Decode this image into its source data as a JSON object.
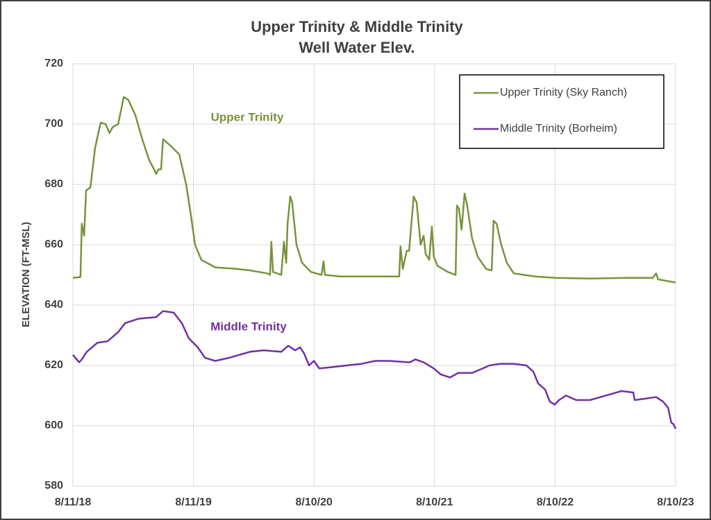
{
  "chart_data": {
    "type": "line",
    "title": "Upper Trinity & Middle Trinity",
    "subtitle": "Well Water Elev.",
    "y_label": "ELEVATION (FT-MSL)",
    "annotations": [
      "Upper Trinity",
      "Middle Trinity"
    ],
    "xlim": [
      "2018-08-11",
      "2023-08-10"
    ],
    "xticks": [
      {
        "value": "2018-08-11",
        "label": "8/11/18"
      },
      {
        "value": "2019-08-11",
        "label": "8/11/19"
      },
      {
        "value": "2020-08-10",
        "label": "8/10/20"
      },
      {
        "value": "2021-08-10",
        "label": "8/10/21"
      },
      {
        "value": "2022-08-10",
        "label": "8/10/22"
      },
      {
        "value": "2023-08-10",
        "label": "8/10/23"
      }
    ],
    "ylim": [
      580,
      720
    ],
    "yticks": [
      580,
      600,
      620,
      640,
      660,
      680,
      700,
      720
    ],
    "grid": true,
    "legend": "top-right",
    "series": [
      {
        "name": "Upper Trinity (Sky Ranch)",
        "color": "#77933c",
        "x": [
          "2018-08-11",
          "2018-09-03",
          "2018-09-07",
          "2018-09-14",
          "2018-09-20",
          "2018-10-03",
          "2018-10-17",
          "2018-11-03",
          "2018-11-18",
          "2018-11-30",
          "2018-12-09",
          "2018-12-26",
          "2019-01-12",
          "2019-01-26",
          "2019-02-16",
          "2019-03-09",
          "2019-03-30",
          "2019-04-14",
          "2019-04-20",
          "2019-04-27",
          "2019-05-05",
          "2019-05-11",
          "2019-06-01",
          "2019-06-29",
          "2019-07-20",
          "2019-08-03",
          "2019-08-16",
          "2019-09-04",
          "2019-10-16",
          "2019-12-18",
          "2020-01-29",
          "2020-03-22",
          "2020-03-30",
          "2020-04-03",
          "2020-04-08",
          "2020-05-03",
          "2020-05-11",
          "2020-05-18",
          "2020-05-22",
          "2020-05-30",
          "2020-06-05",
          "2020-06-18",
          "2020-07-05",
          "2020-08-01",
          "2020-09-02",
          "2020-09-08",
          "2020-09-12",
          "2020-10-29",
          "2021-01-21",
          "2021-03-25",
          "2021-04-25",
          "2021-04-29",
          "2021-05-06",
          "2021-05-18",
          "2021-05-25",
          "2021-06-08",
          "2021-06-17",
          "2021-06-29",
          "2021-07-08",
          "2021-07-14",
          "2021-07-25",
          "2021-08-02",
          "2021-08-08",
          "2021-08-19",
          "2021-09-19",
          "2021-10-13",
          "2021-10-17",
          "2021-10-23",
          "2021-10-31",
          "2021-11-09",
          "2021-11-17",
          "2021-12-02",
          "2021-12-19",
          "2022-01-13",
          "2022-01-30",
          "2022-02-05",
          "2022-02-14",
          "2022-02-28",
          "2022-03-17",
          "2022-04-07",
          "2022-06-09",
          "2022-08-11",
          "2022-11-24",
          "2023-03-10",
          "2023-06-02",
          "2023-06-12",
          "2023-06-18",
          "2023-08-10"
        ],
        "values": [
          649,
          649.3,
          667,
          663,
          678,
          679,
          692,
          700.5,
          700,
          697,
          699,
          700,
          709,
          708,
          703,
          695,
          688,
          685,
          683.5,
          685,
          685,
          695,
          693,
          690,
          680,
          670,
          660,
          655,
          652.5,
          652,
          651.5,
          650.5,
          650,
          661,
          651,
          650,
          661,
          654,
          667,
          676,
          674,
          660,
          654,
          651,
          650,
          654.5,
          650,
          649.5,
          649.5,
          649.5,
          649.5,
          659.5,
          652,
          658,
          658,
          676,
          674,
          660,
          663,
          657,
          655,
          666,
          656,
          653,
          651,
          650,
          673,
          672,
          665,
          677,
          673,
          662,
          656,
          652,
          651.5,
          668,
          667,
          660,
          654,
          650.5,
          649.5,
          649,
          648.8,
          649,
          649,
          650.5,
          648.5,
          647.5
        ]
      },
      {
        "name": "Middle Trinity (Borheim)",
        "color": "#7030a0",
        "x": [
          "2018-08-11",
          "2018-08-30",
          "2018-09-07",
          "2018-09-22",
          "2018-10-24",
          "2018-11-24",
          "2018-12-26",
          "2019-01-16",
          "2019-02-27",
          "2019-04-20",
          "2019-05-11",
          "2019-06-12",
          "2019-07-07",
          "2019-07-28",
          "2019-08-24",
          "2019-09-15",
          "2019-10-16",
          "2019-11-27",
          "2020-01-29",
          "2020-03-11",
          "2020-05-03",
          "2020-05-24",
          "2020-06-14",
          "2020-06-29",
          "2020-07-11",
          "2020-07-26",
          "2020-08-10",
          "2020-08-26",
          "2020-10-08",
          "2020-11-19",
          "2020-12-31",
          "2021-02-11",
          "2021-03-25",
          "2021-05-27",
          "2021-06-13",
          "2021-07-08",
          "2021-08-08",
          "2021-08-29",
          "2021-09-26",
          "2021-10-21",
          "2021-12-02",
          "2022-01-03",
          "2022-01-24",
          "2022-02-24",
          "2022-04-07",
          "2022-05-15",
          "2022-06-05",
          "2022-06-20",
          "2022-07-11",
          "2022-07-25",
          "2022-08-09",
          "2022-08-22",
          "2022-09-12",
          "2022-10-13",
          "2022-11-24",
          "2022-12-26",
          "2023-01-27",
          "2023-02-27",
          "2023-04-04",
          "2023-04-08",
          "2023-05-12",
          "2023-06-12",
          "2023-07-03",
          "2023-07-18",
          "2023-07-28",
          "2023-08-04",
          "2023-08-10"
        ],
        "values": [
          623.5,
          621,
          622,
          624.5,
          627.5,
          628,
          631,
          634,
          635.5,
          636,
          638,
          637.5,
          634,
          629,
          626,
          622.5,
          621.5,
          622.5,
          624.5,
          625,
          624.5,
          626.5,
          625,
          626,
          624,
          620,
          621.5,
          619,
          619.5,
          620,
          620.5,
          621.5,
          621.5,
          621,
          622,
          621,
          619,
          617,
          616,
          617.5,
          617.5,
          619,
          620,
          620.5,
          620.5,
          620,
          618,
          614,
          612,
          608,
          607,
          608.5,
          610,
          608.5,
          608.5,
          609.5,
          610.5,
          611.5,
          611,
          608.5,
          609,
          609.5,
          608,
          606,
          601,
          600.5,
          599
        ]
      }
    ]
  }
}
